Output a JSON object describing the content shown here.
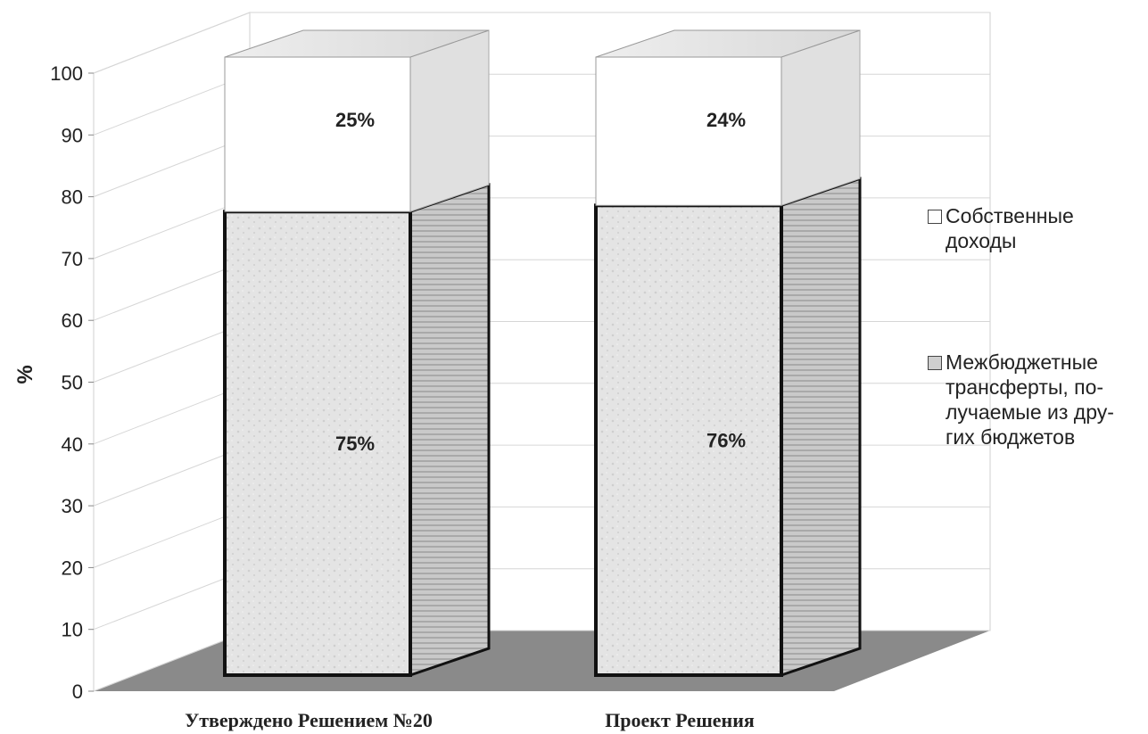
{
  "chart_data": {
    "type": "bar",
    "stacked": true,
    "three_d": true,
    "categories": [
      "Утверждено Решением №20",
      "Проект Решения"
    ],
    "series": [
      {
        "name": "Межбюджетные трансферты, по-лучаемые из дру-гих бюджетов",
        "values": [
          75,
          76
        ],
        "labels": [
          "75%",
          "76%"
        ],
        "color": "#dcdcdc"
      },
      {
        "name": "Собственные доходы",
        "values": [
          25,
          24
        ],
        "labels": [
          "25%",
          "24%"
        ],
        "color": "#ffffff"
      }
    ],
    "ylabel": "%",
    "ylim": [
      0,
      100
    ],
    "yticks": [
      0,
      10,
      20,
      30,
      40,
      50,
      60,
      70,
      80,
      90,
      100
    ],
    "grid": true,
    "legend_position": "right"
  },
  "legend": {
    "own_income_lines": [
      "Собственные",
      "доходы"
    ],
    "transfers_lines": [
      "Межбюджетные",
      "трансферты, по-",
      "лучаемые из дру-",
      "гих бюджетов"
    ]
  }
}
